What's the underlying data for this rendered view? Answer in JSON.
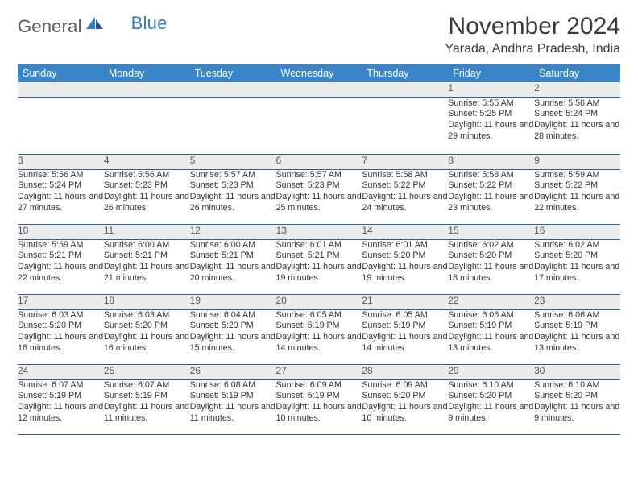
{
  "brand": {
    "text1": "General",
    "text2": "Blue"
  },
  "title": "November 2024",
  "location": "Yarada, Andhra Pradesh, India",
  "colors": {
    "header_bg": "#3b85c6",
    "header_fg": "#ffffff",
    "daynum_bg": "#ececec",
    "rule": "#2f5e8f",
    "brand_gray": "#5a5a5a",
    "brand_blue": "#2e7cc2"
  },
  "weekdays": [
    "Sunday",
    "Monday",
    "Tuesday",
    "Wednesday",
    "Thursday",
    "Friday",
    "Saturday"
  ],
  "weeks": [
    [
      null,
      null,
      null,
      null,
      null,
      {
        "n": "1",
        "sr": "5:55 AM",
        "ss": "5:25 PM",
        "dl": "11 hours and 29 minutes."
      },
      {
        "n": "2",
        "sr": "5:56 AM",
        "ss": "5:24 PM",
        "dl": "11 hours and 28 minutes."
      }
    ],
    [
      {
        "n": "3",
        "sr": "5:56 AM",
        "ss": "5:24 PM",
        "dl": "11 hours and 27 minutes."
      },
      {
        "n": "4",
        "sr": "5:56 AM",
        "ss": "5:23 PM",
        "dl": "11 hours and 26 minutes."
      },
      {
        "n": "5",
        "sr": "5:57 AM",
        "ss": "5:23 PM",
        "dl": "11 hours and 26 minutes."
      },
      {
        "n": "6",
        "sr": "5:57 AM",
        "ss": "5:23 PM",
        "dl": "11 hours and 25 minutes."
      },
      {
        "n": "7",
        "sr": "5:58 AM",
        "ss": "5:22 PM",
        "dl": "11 hours and 24 minutes."
      },
      {
        "n": "8",
        "sr": "5:58 AM",
        "ss": "5:22 PM",
        "dl": "11 hours and 23 minutes."
      },
      {
        "n": "9",
        "sr": "5:59 AM",
        "ss": "5:22 PM",
        "dl": "11 hours and 22 minutes."
      }
    ],
    [
      {
        "n": "10",
        "sr": "5:59 AM",
        "ss": "5:21 PM",
        "dl": "11 hours and 22 minutes."
      },
      {
        "n": "11",
        "sr": "6:00 AM",
        "ss": "5:21 PM",
        "dl": "11 hours and 21 minutes."
      },
      {
        "n": "12",
        "sr": "6:00 AM",
        "ss": "5:21 PM",
        "dl": "11 hours and 20 minutes."
      },
      {
        "n": "13",
        "sr": "6:01 AM",
        "ss": "5:21 PM",
        "dl": "11 hours and 19 minutes."
      },
      {
        "n": "14",
        "sr": "6:01 AM",
        "ss": "5:20 PM",
        "dl": "11 hours and 19 minutes."
      },
      {
        "n": "15",
        "sr": "6:02 AM",
        "ss": "5:20 PM",
        "dl": "11 hours and 18 minutes."
      },
      {
        "n": "16",
        "sr": "6:02 AM",
        "ss": "5:20 PM",
        "dl": "11 hours and 17 minutes."
      }
    ],
    [
      {
        "n": "17",
        "sr": "6:03 AM",
        "ss": "5:20 PM",
        "dl": "11 hours and 16 minutes."
      },
      {
        "n": "18",
        "sr": "6:03 AM",
        "ss": "5:20 PM",
        "dl": "11 hours and 16 minutes."
      },
      {
        "n": "19",
        "sr": "6:04 AM",
        "ss": "5:20 PM",
        "dl": "11 hours and 15 minutes."
      },
      {
        "n": "20",
        "sr": "6:05 AM",
        "ss": "5:19 PM",
        "dl": "11 hours and 14 minutes."
      },
      {
        "n": "21",
        "sr": "6:05 AM",
        "ss": "5:19 PM",
        "dl": "11 hours and 14 minutes."
      },
      {
        "n": "22",
        "sr": "6:06 AM",
        "ss": "5:19 PM",
        "dl": "11 hours and 13 minutes."
      },
      {
        "n": "23",
        "sr": "6:06 AM",
        "ss": "5:19 PM",
        "dl": "11 hours and 13 minutes."
      }
    ],
    [
      {
        "n": "24",
        "sr": "6:07 AM",
        "ss": "5:19 PM",
        "dl": "11 hours and 12 minutes."
      },
      {
        "n": "25",
        "sr": "6:07 AM",
        "ss": "5:19 PM",
        "dl": "11 hours and 11 minutes."
      },
      {
        "n": "26",
        "sr": "6:08 AM",
        "ss": "5:19 PM",
        "dl": "11 hours and 11 minutes."
      },
      {
        "n": "27",
        "sr": "6:09 AM",
        "ss": "5:19 PM",
        "dl": "11 hours and 10 minutes."
      },
      {
        "n": "28",
        "sr": "6:09 AM",
        "ss": "5:20 PM",
        "dl": "11 hours and 10 minutes."
      },
      {
        "n": "29",
        "sr": "6:10 AM",
        "ss": "5:20 PM",
        "dl": "11 hours and 9 minutes."
      },
      {
        "n": "30",
        "sr": "6:10 AM",
        "ss": "5:20 PM",
        "dl": "11 hours and 9 minutes."
      }
    ]
  ],
  "labels": {
    "sunrise": "Sunrise: ",
    "sunset": "Sunset: ",
    "daylight": "Daylight: "
  }
}
